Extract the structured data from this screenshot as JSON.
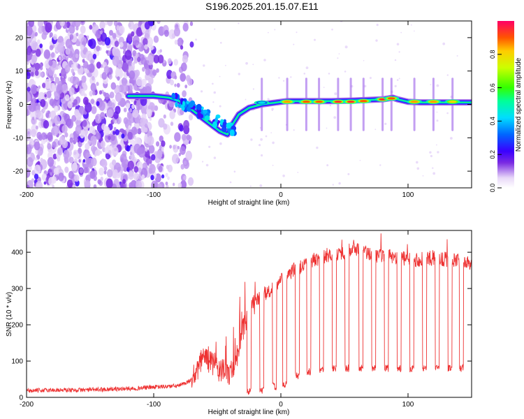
{
  "title": "S196.2025.201.15.07.E11",
  "chart_data": [
    {
      "type": "heatmap",
      "xlabel": "Height of straight line (km)",
      "ylabel": "Frequency (Hz)",
      "xlim": [
        -200,
        150
      ],
      "ylim": [
        -25,
        25
      ],
      "xticks": [
        -200,
        -100,
        0,
        100
      ],
      "yticks": [
        -20,
        -10,
        0,
        10,
        20
      ],
      "colorbar": {
        "label": "Normalized spectral amplitude",
        "range": [
          0,
          1
        ],
        "ticks": [
          "0.0",
          "0.2",
          "0.4",
          "0.6",
          "0.8"
        ],
        "tick_values": [
          0.0,
          0.2,
          0.4,
          0.6,
          0.8
        ]
      },
      "ridge_track": {
        "x": [
          -120,
          -100,
          -88,
          -80,
          -72,
          -62,
          -55,
          -48,
          -42,
          -38,
          -33,
          -25,
          -15,
          -5,
          5,
          20,
          40,
          60,
          80,
          88,
          92,
          100,
          110,
          130,
          150
        ],
        "y": [
          2.5,
          2.5,
          2,
          1,
          -1,
          -4,
          -6,
          -8,
          -9,
          -6,
          -3,
          -1,
          0,
          0.5,
          1,
          1,
          1,
          1.2,
          1.5,
          2,
          1.5,
          0.8,
          0.6,
          0.6,
          0.6
        ]
      },
      "ridge_peaks": [
        {
          "x": -15,
          "y": 0.5,
          "amplitude": 0.45
        },
        {
          "x": 5,
          "y": 0.8,
          "amplitude": 0.85
        },
        {
          "x": 20,
          "y": 0.8,
          "amplitude": 0.9
        },
        {
          "x": 30,
          "y": 0.8,
          "amplitude": 0.9
        },
        {
          "x": 45,
          "y": 0.8,
          "amplitude": 0.95
        },
        {
          "x": 55,
          "y": 0.8,
          "amplitude": 0.95
        },
        {
          "x": 65,
          "y": 1.0,
          "amplitude": 0.9
        },
        {
          "x": 80,
          "y": 1.5,
          "amplitude": 0.95
        },
        {
          "x": 87,
          "y": 1.8,
          "amplitude": 0.9
        },
        {
          "x": 105,
          "y": 0.8,
          "amplitude": 0.85
        },
        {
          "x": 120,
          "y": 0.8,
          "amplitude": 0.85
        },
        {
          "x": 135,
          "y": 0.8,
          "amplitude": 0.8
        }
      ],
      "noise_region": {
        "x_from": -200,
        "x_to": -70,
        "dense_until": -100
      }
    },
    {
      "type": "line",
      "xlabel": "Height of straight line (km)",
      "ylabel": "SNR (10 * v/v)",
      "xlim": [
        -200,
        150
      ],
      "ylim": [
        0,
        460
      ],
      "xticks": [
        -200,
        -100,
        0,
        100
      ],
      "yticks": [
        0,
        100,
        200,
        300,
        400
      ],
      "color": "#ee3333",
      "series": [
        {
          "x": [
            -200,
            -180,
            -160,
            -140,
            -120,
            -100,
            -90,
            -80,
            -72,
            -65,
            -60,
            -55,
            -50,
            -45,
            -40,
            -35,
            -30,
            -25,
            -20,
            -15,
            -10,
            -5,
            0,
            5,
            10,
            15,
            20,
            30,
            40,
            50,
            60,
            70,
            80,
            90,
            100,
            110,
            120,
            130,
            140,
            150
          ],
          "y": [
            18,
            20,
            20,
            22,
            24,
            28,
            30,
            32,
            45,
            75,
            120,
            95,
            80,
            70,
            65,
            110,
            180,
            230,
            260,
            280,
            290,
            300,
            320,
            340,
            350,
            360,
            370,
            385,
            395,
            400,
            410,
            395,
            390,
            385,
            380,
            380,
            385,
            380,
            375,
            370
          ]
        }
      ],
      "dropouts": {
        "x": [
          -25,
          -15,
          -5,
          3,
          13,
          22,
          32,
          42,
          52,
          63,
          73,
          83,
          93,
          103,
          113,
          123,
          133,
          142
        ],
        "y": [
          15,
          20,
          30,
          35,
          60,
          70,
          75,
          80,
          80,
          80,
          80,
          80,
          80,
          80,
          80,
          80,
          80,
          80
        ]
      }
    }
  ]
}
